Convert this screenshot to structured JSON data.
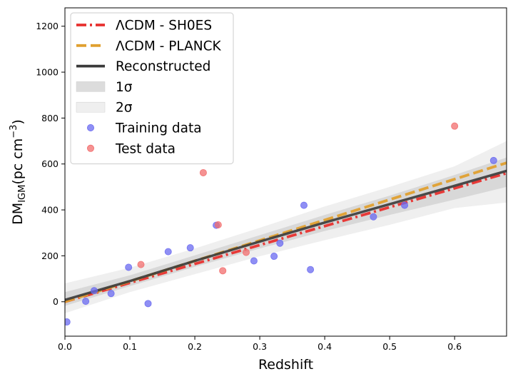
{
  "chart_data": {
    "type": "line",
    "xlabel": "Redshift",
    "ylabel": {
      "main": "DM",
      "sub": "IGM",
      "units": "(pc cm",
      "exp": "−3",
      "close": ")"
    },
    "xlim": [
      0.0,
      0.68
    ],
    "ylim": [
      -150,
      1280
    ],
    "xticks": [
      0.0,
      0.1,
      0.2,
      0.3,
      0.4,
      0.5,
      0.6
    ],
    "xtick_labels": [
      "0.0",
      "0.1",
      "0.2",
      "0.3",
      "0.4",
      "0.5",
      "0.6"
    ],
    "yticks": [
      0,
      200,
      400,
      600,
      800,
      1000,
      1200
    ],
    "ytick_labels": [
      "0",
      "200",
      "400",
      "600",
      "800",
      "1000",
      "1200"
    ],
    "grid": false,
    "legend_position": "top-left",
    "series": [
      {
        "name": "ΛCDM - SH0ES",
        "kind": "line",
        "style": "dashdot",
        "color": "#e8312f",
        "x": [
          0.0,
          0.68
        ],
        "y": [
          0,
          560
        ]
      },
      {
        "name": "ΛCDM - PLANCK",
        "kind": "line",
        "style": "dashed",
        "color": "#e0a030",
        "x": [
          0.0,
          0.68
        ],
        "y": [
          0,
          605
        ]
      },
      {
        "name": "Reconstructed",
        "kind": "line",
        "style": "solid",
        "color": "#3a3a3a",
        "x": [
          0.0,
          0.1,
          0.2,
          0.3,
          0.4,
          0.5,
          0.6,
          0.68
        ],
        "y": [
          8,
          90,
          178,
          262,
          345,
          425,
          505,
          570
        ]
      },
      {
        "name": "1σ",
        "kind": "band",
        "color": "#c8c8c8",
        "x": [
          0.0,
          0.1,
          0.2,
          0.3,
          0.4,
          0.5,
          0.6,
          0.68
        ],
        "lower": [
          -18,
          68,
          152,
          232,
          308,
          378,
          445,
          500
        ],
        "upper": [
          42,
          115,
          202,
          290,
          378,
          462,
          552,
          628
        ]
      },
      {
        "name": "2σ",
        "kind": "band",
        "color": "#e4e4e4",
        "x": [
          0.0,
          0.1,
          0.2,
          0.3,
          0.4,
          0.5,
          0.6,
          0.68
        ],
        "lower": [
          -50,
          42,
          120,
          198,
          268,
          335,
          408,
          432
        ],
        "upper": [
          80,
          148,
          232,
          322,
          415,
          500,
          590,
          700
        ]
      },
      {
        "name": "Training data",
        "kind": "scatter",
        "color": "#6a6af0",
        "x": [
          0.003,
          0.032,
          0.045,
          0.071,
          0.098,
          0.128,
          0.159,
          0.193,
          0.233,
          0.291,
          0.322,
          0.331,
          0.368,
          0.378,
          0.475,
          0.523,
          0.66
        ],
        "y": [
          -88,
          2,
          48,
          36,
          150,
          -8,
          218,
          235,
          333,
          178,
          198,
          255,
          420,
          140,
          370,
          420,
          615
        ]
      },
      {
        "name": "Test data",
        "kind": "scatter",
        "color": "#f26d6d",
        "x": [
          0.117,
          0.213,
          0.236,
          0.243,
          0.279,
          0.6
        ],
        "y": [
          162,
          562,
          335,
          135,
          215,
          765
        ]
      }
    ],
    "legend": {
      "entries": [
        {
          "label": "ΛCDM - SH0ES",
          "symbol": "dashdot",
          "color": "#e8312f"
        },
        {
          "label": "ΛCDM - PLANCK",
          "symbol": "dashed",
          "color": "#e0a030"
        },
        {
          "label": "Reconstructed",
          "symbol": "solid",
          "color": "#3a3a3a"
        },
        {
          "label": "1σ",
          "symbol": "patch",
          "color": "#dcdcdc"
        },
        {
          "label": "2σ",
          "symbol": "patch",
          "color": "#efefef"
        },
        {
          "label": "Training data",
          "symbol": "marker",
          "color": "#6a6af0"
        },
        {
          "label": "Test data",
          "symbol": "marker",
          "color": "#f26d6d"
        }
      ]
    }
  }
}
